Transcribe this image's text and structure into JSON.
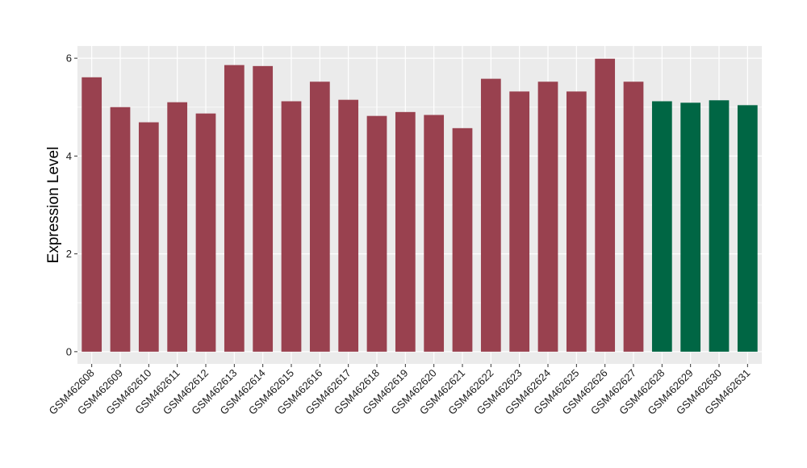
{
  "chart_data": {
    "type": "bar",
    "title": "",
    "xlabel": "",
    "ylabel": "Expression Level",
    "ylim": [
      -0.25,
      6.25
    ],
    "yticks": [
      0,
      2,
      4,
      6
    ],
    "grid": true,
    "categories": [
      "GSM462608",
      "GSM462609",
      "GSM462610",
      "GSM462611",
      "GSM462612",
      "GSM462613",
      "GSM462614",
      "GSM462615",
      "GSM462616",
      "GSM462617",
      "GSM462618",
      "GSM462619",
      "GSM462620",
      "GSM462621",
      "GSM462622",
      "GSM462623",
      "GSM462624",
      "GSM462625",
      "GSM462626",
      "GSM462627",
      "GSM462628",
      "GSM462629",
      "GSM462630",
      "GSM462631"
    ],
    "values": [
      5.61,
      5.0,
      4.69,
      5.1,
      4.87,
      5.86,
      5.84,
      5.12,
      5.52,
      5.15,
      4.82,
      4.9,
      4.84,
      4.57,
      5.58,
      5.32,
      5.52,
      5.32,
      5.99,
      5.52,
      5.12,
      5.09,
      5.14,
      5.04
    ],
    "groups": [
      "a",
      "a",
      "a",
      "a",
      "a",
      "a",
      "a",
      "a",
      "a",
      "a",
      "a",
      "a",
      "a",
      "a",
      "a",
      "a",
      "a",
      "a",
      "a",
      "a",
      "b",
      "b",
      "b",
      "b"
    ],
    "colors": {
      "a": "#99414f",
      "b": "#006644"
    },
    "panel_background": "#ebebeb",
    "grid_color": "#ffffff"
  }
}
